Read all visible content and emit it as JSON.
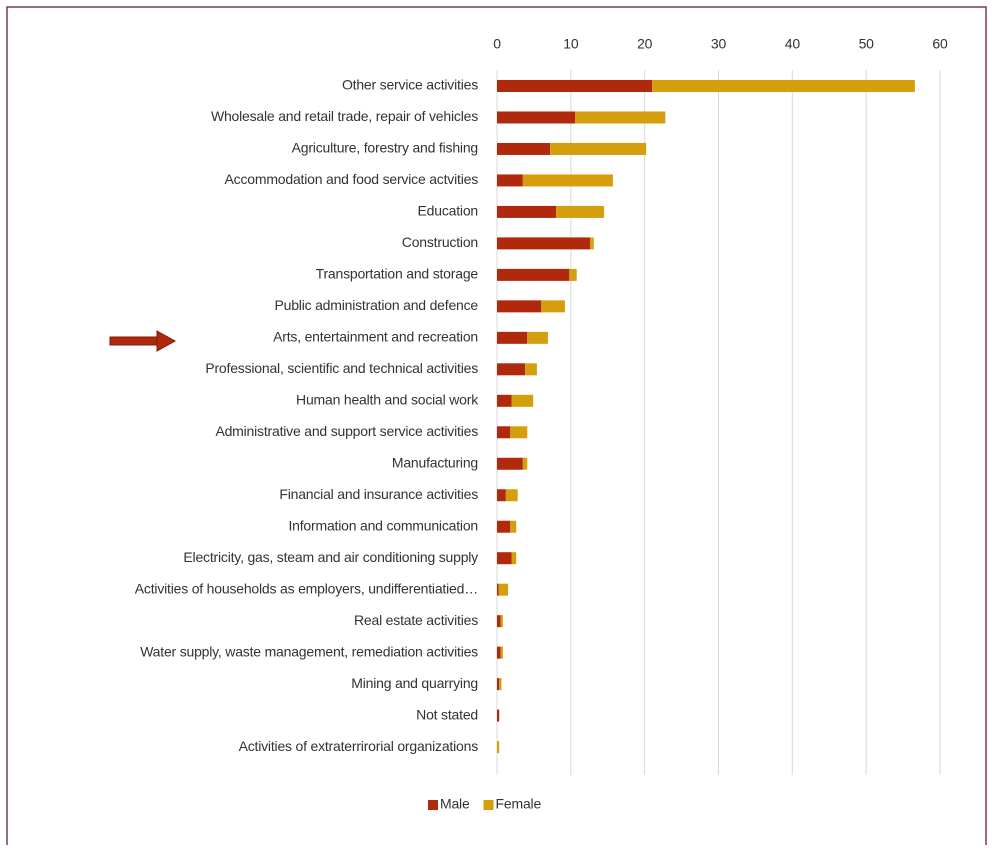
{
  "chart_data": {
    "type": "stacked_barh",
    "categories": [
      "Other service activities",
      "Wholesale and retail trade, repair of vehicles",
      "Agriculture, forestry and fishing",
      "Accommodation and food service actvities",
      "Education",
      "Construction",
      "Transportation and storage",
      "Public administration and defence",
      "Arts, entertainment and recreation",
      "Professional, scientific and technical activities",
      "Human health and social work",
      "Administrative and support service activities",
      "Manufacturing",
      "Financial and insurance activities",
      "Information and communication",
      "Electricity, gas, steam and air conditioning supply",
      "Activities of households as employers, undifferentiatied…",
      "Real estate activities",
      "Water supply, waste management, remediation activities",
      "Mining and quarrying",
      "Not stated",
      "Activities of extraterrirorial organizations"
    ],
    "series": [
      {
        "name": "Male",
        "color": "#b0290c",
        "values": [
          21.0,
          10.6,
          7.2,
          3.5,
          8.0,
          12.6,
          9.8,
          6.0,
          4.1,
          3.8,
          2.0,
          1.8,
          3.5,
          1.2,
          1.8,
          2.0,
          0.2,
          0.5,
          0.5,
          0.3,
          0.3,
          0
        ]
      },
      {
        "name": "Female",
        "color": "#d49e0c",
        "values": [
          35.6,
          12.2,
          13.0,
          12.2,
          6.5,
          0.5,
          1.0,
          3.2,
          2.8,
          1.6,
          2.9,
          2.3,
          0.6,
          1.6,
          0.8,
          0.6,
          1.3,
          0.3,
          0.3,
          0.3,
          0,
          0.3
        ]
      }
    ],
    "xlim": [
      0,
      60
    ],
    "xticks": [
      0,
      10,
      20,
      30,
      40,
      50,
      60
    ],
    "grid": true,
    "legend": "bottom"
  }
}
